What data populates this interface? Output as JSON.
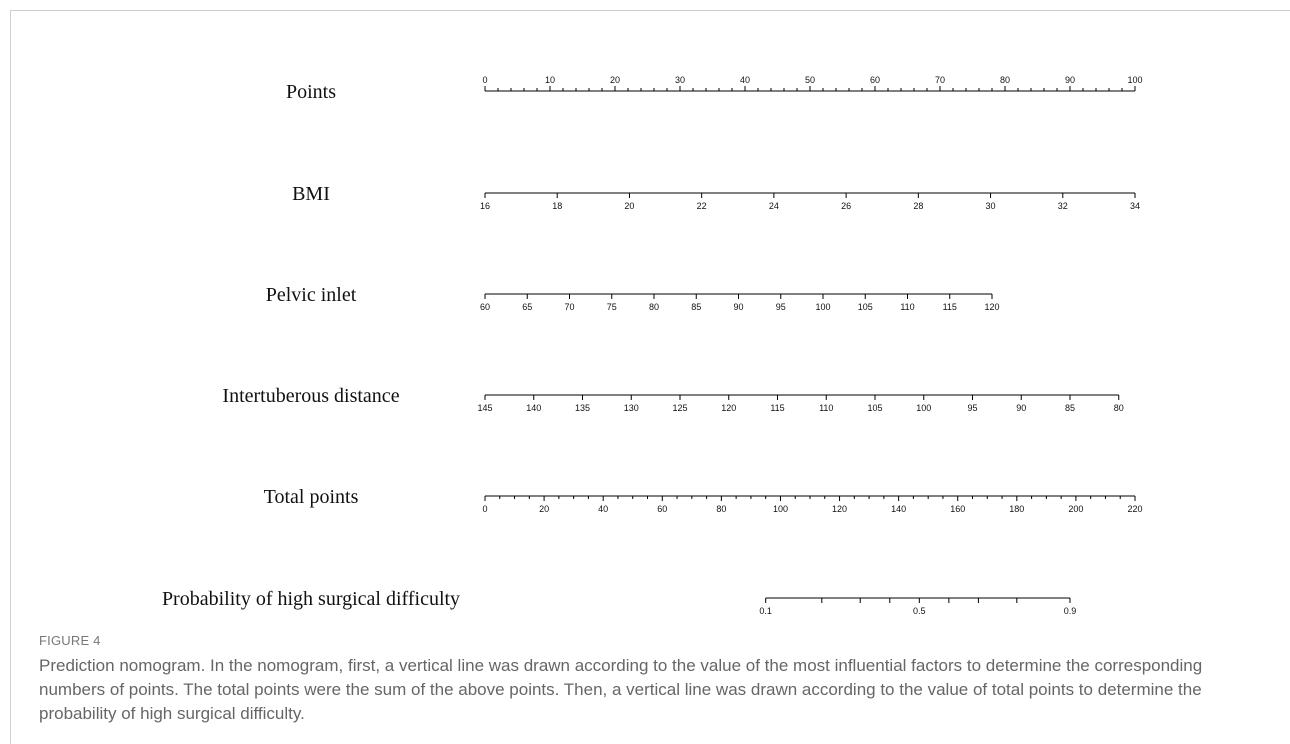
{
  "figure_label": "FIGURE 4",
  "caption": "Prediction nomogram. In the nomogram, first, a vertical line was drawn according to the value of the most influential factors to determine the corresponding numbers of points. The total points were the sum of the above points. Then, a vertical line was drawn according to the value of total points to determine the probability of high surgical difficulty.",
  "chart_data": {
    "type": "nomogram",
    "title": "",
    "rows": [
      {
        "label": "Points",
        "range": [
          0,
          100
        ],
        "ticks": [
          0,
          10,
          20,
          30,
          40,
          50,
          60,
          70,
          80,
          90,
          100
        ],
        "minor_step": 2,
        "labels_above": true
      },
      {
        "label": "BMI",
        "range": [
          16,
          34
        ],
        "ticks": [
          16,
          18,
          20,
          22,
          24,
          26,
          28,
          30,
          32,
          34
        ],
        "points_range": [
          0,
          100
        ],
        "labels_above": false
      },
      {
        "label": "Pelvic inlet",
        "range": [
          60,
          120
        ],
        "ticks": [
          60,
          65,
          70,
          75,
          80,
          85,
          90,
          95,
          100,
          105,
          110,
          115,
          120
        ],
        "points_range": [
          0,
          78
        ],
        "labels_above": false
      },
      {
        "label": "Intertuberous distance",
        "range": [
          145,
          80
        ],
        "ticks": [
          145,
          140,
          135,
          130,
          125,
          120,
          115,
          110,
          105,
          100,
          95,
          90,
          85,
          80
        ],
        "points_range": [
          0,
          97.5
        ],
        "labels_above": false
      },
      {
        "label": "Total points",
        "range": [
          0,
          220
        ],
        "ticks": [
          0,
          20,
          40,
          60,
          80,
          100,
          120,
          140,
          160,
          180,
          200,
          220
        ],
        "minor_step": 5,
        "labels_above": false
      },
      {
        "label": "Probability of high surgical difficulty",
        "range": [
          0.1,
          0.9
        ],
        "ticks": [
          0.1,
          0.2,
          0.3,
          0.4,
          0.5,
          0.6,
          0.7,
          0.8,
          0.9
        ],
        "tick_labels": [
          "0.1",
          "",
          "",
          "",
          "0.5",
          "",
          "",
          "",
          "0.9"
        ],
        "total_points_at_ticks": [
          95,
          114,
          127,
          137,
          147,
          157,
          167,
          180,
          198
        ],
        "labels_above": false
      }
    ]
  }
}
